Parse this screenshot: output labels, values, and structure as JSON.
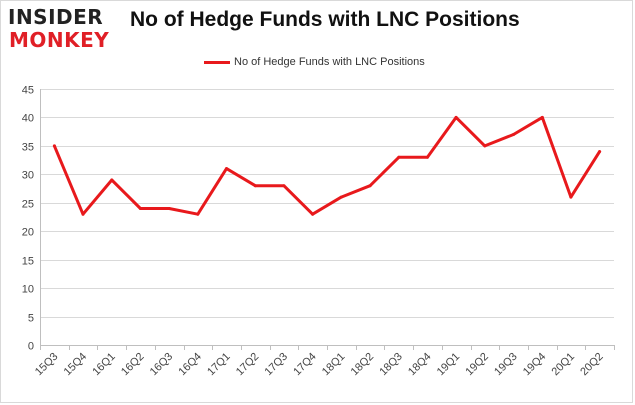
{
  "logo": {
    "line1": "INSIDER",
    "line2": "MONKEY"
  },
  "chart_data": {
    "type": "line",
    "title": "No of Hedge Funds with LNC Positions",
    "xlabel": "",
    "ylabel": "",
    "categories": [
      "15Q3",
      "15Q4",
      "16Q1",
      "16Q2",
      "16Q3",
      "16Q4",
      "17Q1",
      "17Q2",
      "17Q3",
      "17Q4",
      "18Q1",
      "18Q2",
      "18Q3",
      "18Q4",
      "19Q1",
      "19Q2",
      "19Q3",
      "19Q4",
      "20Q1",
      "20Q2"
    ],
    "series": [
      {
        "name": "No of Hedge Funds with LNC Positions",
        "color": "#e8191c",
        "values": [
          35,
          23,
          29,
          24,
          24,
          23,
          31,
          28,
          28,
          23,
          26,
          28,
          33,
          33,
          40,
          35,
          37,
          40,
          26,
          34
        ]
      }
    ],
    "ylim": [
      0,
      45
    ],
    "yticks": [
      0,
      5,
      10,
      15,
      20,
      25,
      30,
      35,
      40,
      45
    ],
    "grid": true,
    "legend": "top-center"
  }
}
